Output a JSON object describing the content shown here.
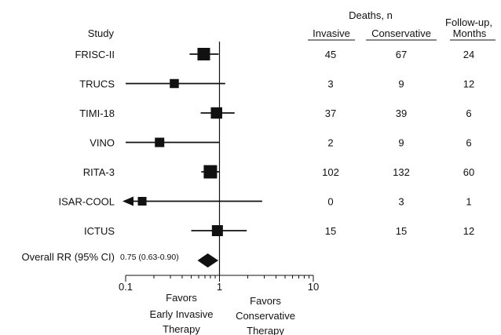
{
  "chart_data": {
    "type": "forest",
    "x_scale": "log",
    "xlim": [
      0.1,
      10
    ],
    "x_ticks": [
      "0.1",
      "1",
      "10"
    ],
    "reference_line": 1,
    "header": {
      "study": "Study",
      "deaths": "Deaths, n",
      "invasive": "Invasive",
      "conservative": "Conservative",
      "followup_line1": "Follow-up,",
      "followup_line2": "Months"
    },
    "studies": [
      {
        "name": "FRISC-II",
        "estimate": 0.68,
        "ci_low": 0.48,
        "ci_high": 0.98,
        "weight": 1.0,
        "invasive": "45",
        "conservative": "67",
        "followup": "24"
      },
      {
        "name": "TRUCS",
        "estimate": 0.33,
        "ci_low": 0.1,
        "ci_high": 1.15,
        "weight": 0.55,
        "invasive": "3",
        "conservative": "9",
        "followup": "12"
      },
      {
        "name": "TIMI-18",
        "estimate": 0.93,
        "ci_low": 0.63,
        "ci_high": 1.45,
        "weight": 0.85,
        "invasive": "37",
        "conservative": "39",
        "followup": "6"
      },
      {
        "name": "VINO",
        "estimate": 0.23,
        "ci_low": 0.1,
        "ci_high": 1.0,
        "weight": 0.6,
        "invasive": "2",
        "conservative": "9",
        "followup": "6"
      },
      {
        "name": "RITA-3",
        "estimate": 0.8,
        "ci_low": 0.64,
        "ci_high": 0.99,
        "weight": 1.1,
        "invasive": "102",
        "conservative": "132",
        "followup": "60"
      },
      {
        "name": "ISAR-COOL",
        "estimate": 0.15,
        "ci_low": 0.1,
        "ci_high": 2.85,
        "weight": 0.5,
        "arrow_left": true,
        "invasive": "0",
        "conservative": "3",
        "followup": "1"
      },
      {
        "name": "ICTUS",
        "estimate": 0.95,
        "ci_low": 0.5,
        "ci_high": 1.95,
        "weight": 0.8,
        "invasive": "15",
        "conservative": "15",
        "followup": "12"
      }
    ],
    "overall": {
      "label": "Overall RR (95% CI)",
      "value_text": "0.75 (0.63-0.90)",
      "estimate": 0.75,
      "ci_low": 0.63,
      "ci_high": 0.9
    },
    "annotations": {
      "favors_left": [
        "Favors",
        "Early Invasive",
        "Therapy"
      ],
      "favors_right": [
        "Favors",
        "Conservative",
        "Therapy"
      ]
    }
  }
}
